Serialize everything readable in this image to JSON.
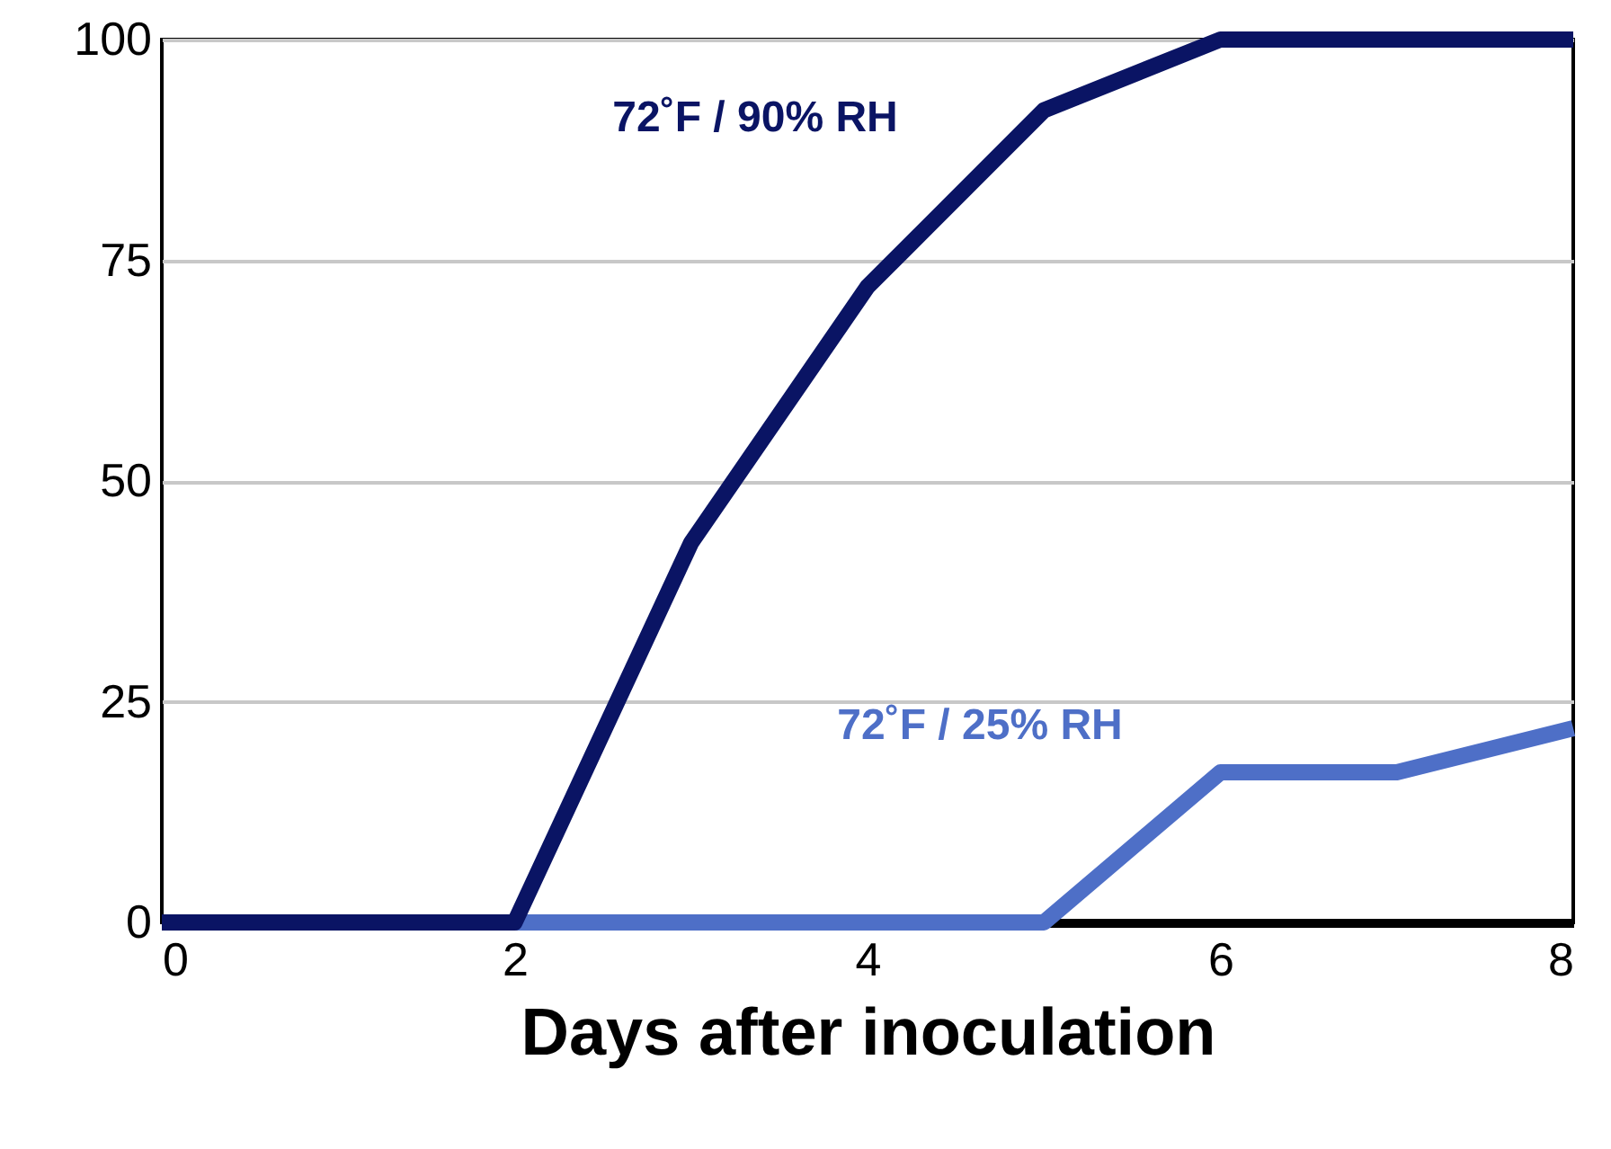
{
  "chart_data": {
    "type": "line",
    "xlabel": "Days after inoculation",
    "x": [
      0,
      1,
      2,
      3,
      4,
      5,
      6,
      7,
      8
    ],
    "series": [
      {
        "name": "72˚F  /  25% RH",
        "color": "#4e6fc7",
        "values": [
          0,
          0,
          0,
          0,
          0,
          0,
          17,
          17,
          22
        ]
      },
      {
        "name": "72˚F  /  90% RH",
        "color": "#0a1464",
        "values": [
          0,
          0,
          0,
          43,
          72,
          92,
          100,
          100,
          100
        ]
      }
    ],
    "xlim": [
      0,
      8
    ],
    "xticks": [
      0,
      2,
      4,
      6,
      8
    ],
    "ylim": [
      0,
      100
    ],
    "yticks": [
      0,
      25,
      50,
      75,
      100
    ],
    "grid": "y",
    "marker": "none",
    "line_style": "solid"
  }
}
